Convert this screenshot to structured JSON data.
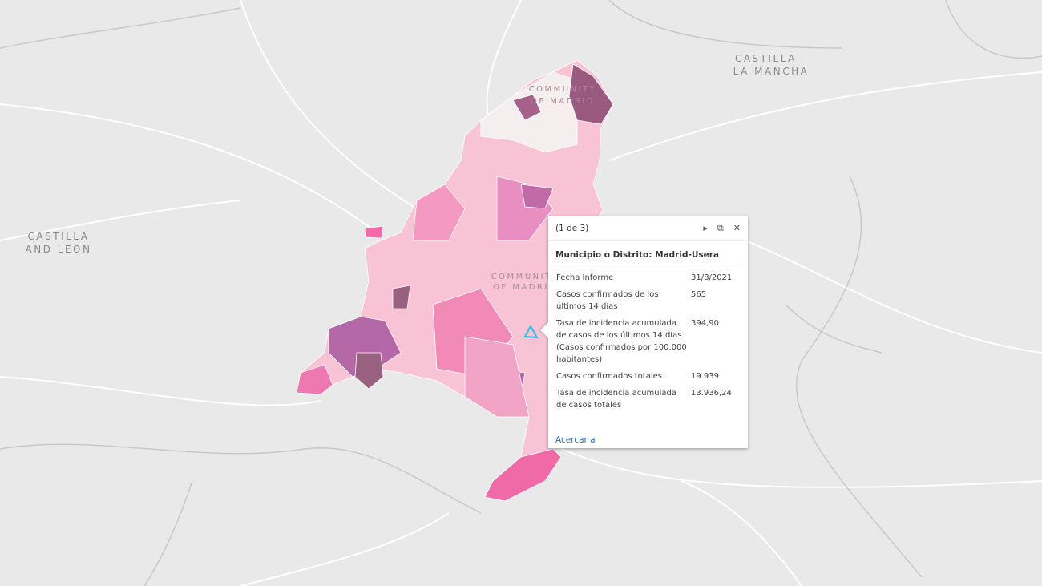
{
  "map_labels": {
    "castilla_la_mancha": [
      "CASTILLA -",
      "LA MANCHA"
    ],
    "castilla_leon": [
      "CASTILLA",
      "AND LEON"
    ],
    "madrid_north": [
      "COMMUNITY",
      "OF MADRID"
    ],
    "madrid_center": [
      "COMMUNITY",
      "OF MADRID"
    ]
  },
  "popup": {
    "pager": "(1 de 3)",
    "title": "Municipio o Distrito: Madrid-Usera",
    "rows": [
      [
        "Fecha Informe",
        "31/8/2021"
      ],
      [
        "Casos confirmados de los últimos 14 días",
        "565"
      ],
      [
        "Tasa de incidencia acumulada de casos de los últimos 14 días (Casos confirmados por 100.000 habitantes)",
        "394,90"
      ],
      [
        "Casos confirmados totales",
        "19.939"
      ],
      [
        "Tasa de incidencia acumulada de casos totales",
        "13.936,24"
      ]
    ],
    "link": "Acercar a"
  }
}
